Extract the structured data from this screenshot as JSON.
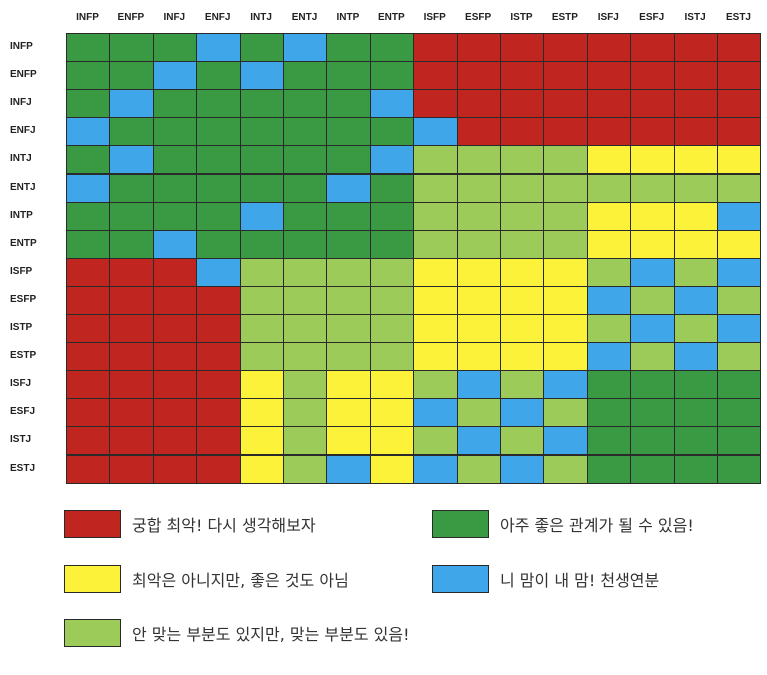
{
  "chart_data": {
    "type": "heatmap",
    "columns": [
      "INFP",
      "ENFP",
      "INFJ",
      "ENFJ",
      "INTJ",
      "ENTJ",
      "INTP",
      "ENTP",
      "ISFP",
      "ESFP",
      "ISTP",
      "ESTP",
      "ISFJ",
      "ESFJ",
      "ISTJ",
      "ESTJ"
    ],
    "rows": [
      "INFP",
      "ENFP",
      "INFJ",
      "ENFJ",
      "INTJ",
      "ENTJ",
      "INTP",
      "ENTP",
      "ISFP",
      "ESFP",
      "ISTP",
      "ESTP",
      "ISFJ",
      "ESFJ",
      "ISTJ",
      "ESTJ"
    ],
    "categories": {
      "R": {
        "label": "궁합 최악! 다시 생각해보자",
        "color": "#c0261f"
      },
      "G": {
        "label": "아주 좋은 관계가 될 수 있음!",
        "color": "#3a9a44"
      },
      "Y": {
        "label": "최악은 아니지만, 좋은 것도 아님",
        "color": "#fdf23a"
      },
      "B": {
        "label": "니 맘이 내 맘! 천생연분",
        "color": "#3fa6ea"
      },
      "L": {
        "label": "안 맞는 부분도 있지만, 맞는 부분도 있음!",
        "color": "#9ccb5a"
      }
    },
    "legend_order": [
      "R",
      "G",
      "Y",
      "B",
      "L"
    ],
    "grid": [
      [
        "G",
        "G",
        "G",
        "B",
        "G",
        "B",
        "G",
        "G",
        "R",
        "R",
        "R",
        "R",
        "R",
        "R",
        "R",
        "R"
      ],
      [
        "G",
        "G",
        "B",
        "G",
        "B",
        "G",
        "G",
        "G",
        "R",
        "R",
        "R",
        "R",
        "R",
        "R",
        "R",
        "R"
      ],
      [
        "G",
        "B",
        "G",
        "G",
        "G",
        "G",
        "G",
        "B",
        "R",
        "R",
        "R",
        "R",
        "R",
        "R",
        "R",
        "R"
      ],
      [
        "B",
        "G",
        "G",
        "G",
        "G",
        "G",
        "G",
        "G",
        "B",
        "R",
        "R",
        "R",
        "R",
        "R",
        "R",
        "R"
      ],
      [
        "G",
        "B",
        "G",
        "G",
        "G",
        "G",
        "G",
        "B",
        "L",
        "L",
        "L",
        "L",
        "Y",
        "Y",
        "Y",
        "Y"
      ],
      [
        "B",
        "G",
        "G",
        "G",
        "G",
        "G",
        "B",
        "G",
        "L",
        "L",
        "L",
        "L",
        "L",
        "L",
        "L",
        "L"
      ],
      [
        "G",
        "G",
        "G",
        "G",
        "B",
        "G",
        "G",
        "G",
        "L",
        "L",
        "L",
        "L",
        "Y",
        "Y",
        "Y",
        "B"
      ],
      [
        "G",
        "G",
        "B",
        "G",
        "G",
        "G",
        "G",
        "G",
        "L",
        "L",
        "L",
        "L",
        "Y",
        "Y",
        "Y",
        "Y"
      ],
      [
        "R",
        "R",
        "R",
        "B",
        "L",
        "L",
        "L",
        "L",
        "Y",
        "Y",
        "Y",
        "Y",
        "L",
        "B",
        "L",
        "B"
      ],
      [
        "R",
        "R",
        "R",
        "R",
        "L",
        "L",
        "L",
        "L",
        "Y",
        "Y",
        "Y",
        "Y",
        "B",
        "L",
        "B",
        "L"
      ],
      [
        "R",
        "R",
        "R",
        "R",
        "L",
        "L",
        "L",
        "L",
        "Y",
        "Y",
        "Y",
        "Y",
        "L",
        "B",
        "L",
        "B"
      ],
      [
        "R",
        "R",
        "R",
        "R",
        "L",
        "L",
        "L",
        "L",
        "Y",
        "Y",
        "Y",
        "Y",
        "B",
        "L",
        "B",
        "L"
      ],
      [
        "R",
        "R",
        "R",
        "R",
        "Y",
        "L",
        "Y",
        "Y",
        "L",
        "B",
        "L",
        "B",
        "G",
        "G",
        "G",
        "G"
      ],
      [
        "R",
        "R",
        "R",
        "R",
        "Y",
        "L",
        "Y",
        "Y",
        "B",
        "L",
        "B",
        "L",
        "G",
        "G",
        "G",
        "G"
      ],
      [
        "R",
        "R",
        "R",
        "R",
        "Y",
        "L",
        "Y",
        "Y",
        "L",
        "B",
        "L",
        "B",
        "G",
        "G",
        "G",
        "G"
      ],
      [
        "R",
        "R",
        "R",
        "R",
        "Y",
        "L",
        "B",
        "Y",
        "B",
        "L",
        "B",
        "L",
        "G",
        "G",
        "G",
        "G"
      ]
    ]
  }
}
